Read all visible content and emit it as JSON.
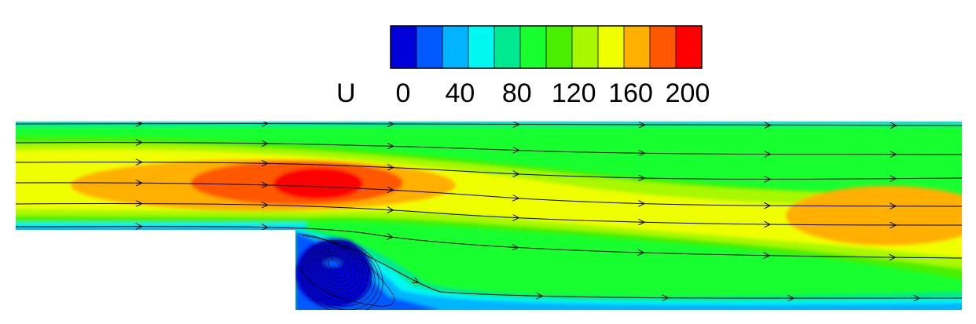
{
  "chart_data": {
    "type": "heatmap",
    "title": "",
    "legend": {
      "title": "U",
      "placement": "top-center",
      "ticks": [
        0,
        40,
        80,
        120,
        160,
        200
      ],
      "colors": [
        "#0000d8",
        "#0058ff",
        "#00b4ff",
        "#00f8f0",
        "#00e890",
        "#18ff30",
        "#48f000",
        "#a8f800",
        "#f0ff00",
        "#ffb000",
        "#ff5800",
        "#ff0000"
      ]
    },
    "field": {
      "variable": "U",
      "range": [
        -20,
        220
      ],
      "inlet_max": 170,
      "recirculation_min": -10,
      "streamlines": true
    }
  }
}
